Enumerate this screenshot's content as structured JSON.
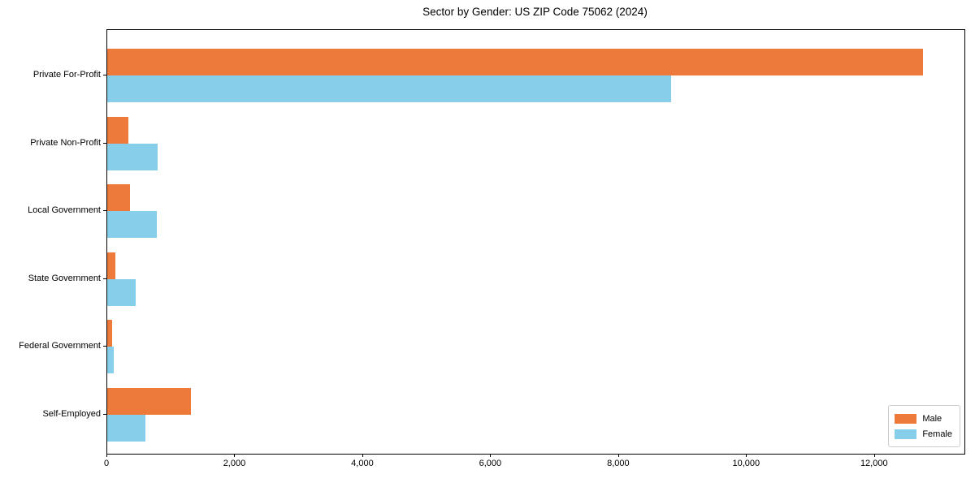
{
  "chart_data": {
    "type": "bar",
    "orientation": "horizontal",
    "title": "Sector by Gender: US ZIP Code 75062 (2024)",
    "categories": [
      "Private For-Profit",
      "Private Non-Profit",
      "Local Government",
      "State Government",
      "Federal Government",
      "Self-Employed"
    ],
    "series": [
      {
        "name": "Male",
        "color": "#ED7A3B",
        "values": [
          12750,
          330,
          350,
          130,
          70,
          1310
        ]
      },
      {
        "name": "Female",
        "color": "#87CEEB",
        "values": [
          8820,
          790,
          780,
          450,
          105,
          595
        ]
      }
    ],
    "xlabel": "",
    "ylabel": "",
    "xlim": [
      0,
      13400
    ],
    "xticks": [
      0,
      2000,
      4000,
      6000,
      8000,
      10000,
      12000
    ],
    "xtick_labels": [
      "0",
      "2,000",
      "4,000",
      "6,000",
      "8,000",
      "10,000",
      "12,000"
    ],
    "legend_position": "lower right",
    "grid": false,
    "colors": {
      "spine": "#000000",
      "background": "#ffffff"
    }
  }
}
